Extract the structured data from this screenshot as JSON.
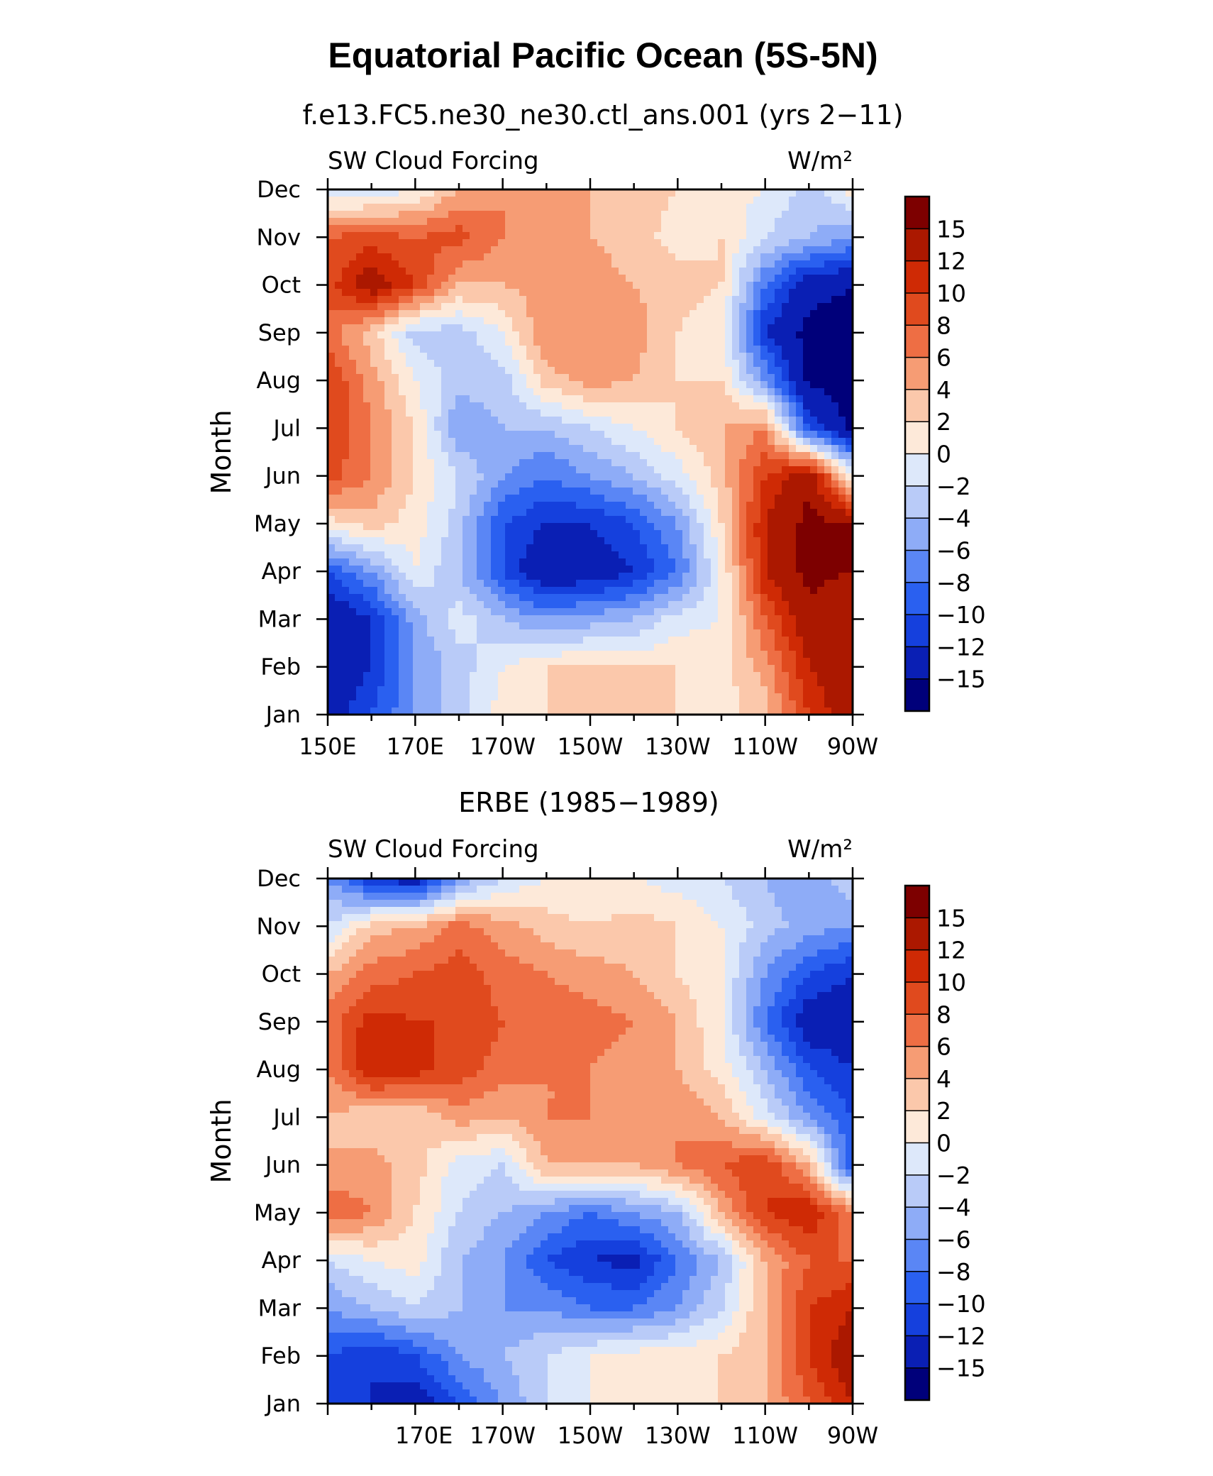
{
  "figure_title": "Equatorial Pacific Ocean (5S-5N)",
  "levels": [
    -15,
    -12,
    -10,
    -8,
    -6,
    -4,
    -2,
    0,
    2,
    4,
    6,
    8,
    10,
    12,
    15
  ],
  "palette": [
    "#00007a",
    "#0a1fb4",
    "#1540dd",
    "#2a60f0",
    "#5a86f5",
    "#8eacf7",
    "#b9cbf8",
    "#dde8fa",
    "#fde9d9",
    "#fbc8ab",
    "#f69c74",
    "#ee6e44",
    "#e04a1e",
    "#cf2a05",
    "#ab1800",
    "#7d0000"
  ],
  "chart_data": [
    {
      "type": "heatmap",
      "subtitle": "f.e13.FC5.ne30_ne30.ctl_ans.001 (yrs 2−11)",
      "corner_left": "SW Cloud Forcing",
      "corner_right": "W/m²",
      "ylabel": "Month",
      "x_tick_labels": [
        "150E",
        "170E",
        "170W",
        "150W",
        "130W",
        "110W",
        "90W"
      ],
      "y_tick_labels": [
        "Jan",
        "Feb",
        "Mar",
        "Apr",
        "May",
        "Jun",
        "Jul",
        "Aug",
        "Sep",
        "Oct",
        "Nov",
        "Dec"
      ],
      "colorbar_labels": [
        "−15",
        "−12",
        "−10",
        "−8",
        "−6",
        "−4",
        "−2",
        "0",
        "2",
        "4",
        "6",
        "8",
        "10",
        "12",
        "15"
      ],
      "xlim": [
        150,
        270
      ],
      "ylim": [
        "Jan",
        "Dec"
      ],
      "x": [
        150,
        160,
        170,
        180,
        190,
        200,
        210,
        220,
        230,
        240,
        250,
        260,
        270
      ],
      "y": [
        "Jan",
        "Feb",
        "Mar",
        "Apr",
        "May",
        "Jun",
        "Jul",
        "Aug",
        "Sep",
        "Oct",
        "Nov",
        "Dec"
      ],
      "z": [
        [
          -14,
          -10,
          -6,
          -3,
          1,
          2,
          3,
          3,
          2,
          1,
          3,
          10,
          14
        ],
        [
          -14,
          -12,
          -6,
          -3,
          0,
          2,
          2,
          2,
          2,
          1,
          5,
          12,
          15
        ],
        [
          -15,
          -12,
          -5,
          -1,
          -4,
          -6,
          -5,
          -4,
          -1,
          0,
          8,
          14,
          12
        ],
        [
          -10,
          -6,
          0,
          -4,
          -10,
          -15,
          -14,
          -12,
          -8,
          0,
          12,
          16,
          15
        ],
        [
          1,
          3,
          1,
          -3,
          -10,
          -12,
          -12,
          -10,
          -6,
          2,
          12,
          16,
          15
        ],
        [
          9,
          6,
          2,
          -2,
          -6,
          -8,
          -6,
          -4,
          -1,
          3,
          10,
          14,
          0
        ],
        [
          10,
          6,
          2,
          -6,
          -4,
          -4,
          -2,
          0,
          2,
          4,
          6,
          -10,
          -16
        ],
        [
          10,
          5,
          0,
          -3,
          -3,
          3,
          5,
          4,
          2,
          2,
          -6,
          -16,
          -16
        ],
        [
          7,
          3,
          -3,
          -3,
          0,
          6,
          6,
          5,
          2,
          0,
          -12,
          -16,
          -16
        ],
        [
          9,
          14,
          10,
          4,
          4,
          5,
          5,
          4,
          3,
          2,
          -8,
          -14,
          -15
        ],
        [
          8,
          9,
          8,
          9,
          6,
          4,
          4,
          3,
          1,
          2,
          -2,
          -4,
          -6
        ],
        [
          -2,
          -2,
          0,
          4,
          6,
          6,
          4,
          3,
          2,
          1,
          0,
          -3,
          1
        ]
      ]
    },
    {
      "type": "heatmap",
      "subtitle": "ERBE (1985−1989)",
      "corner_left": "SW Cloud Forcing",
      "corner_right": "W/m²",
      "ylabel": "Month",
      "x_tick_labels": [
        "170E",
        "170W",
        "150W",
        "130W",
        "110W",
        "90W"
      ],
      "y_tick_labels": [
        "Jan",
        "Feb",
        "Mar",
        "Apr",
        "May",
        "Jun",
        "Jul",
        "Aug",
        "Sep",
        "Oct",
        "Nov",
        "Dec"
      ],
      "colorbar_labels": [
        "−15",
        "−12",
        "−10",
        "−8",
        "−6",
        "−4",
        "−2",
        "0",
        "2",
        "4",
        "6",
        "8",
        "10",
        "12",
        "15"
      ],
      "xlim": [
        150,
        270
      ],
      "ylim": [
        "Jan",
        "Dec"
      ],
      "x": [
        150,
        160,
        170,
        180,
        190,
        200,
        210,
        220,
        230,
        240,
        250,
        260,
        270
      ],
      "y": [
        "Jan",
        "Feb",
        "Mar",
        "Apr",
        "May",
        "Jun",
        "Jul",
        "Aug",
        "Sep",
        "Oct",
        "Nov",
        "Dec"
      ],
      "z": [
        [
          -10,
          -12,
          -14,
          -10,
          -6,
          -2,
          0,
          1,
          1,
          2,
          4,
          8,
          12
        ],
        [
          -10,
          -12,
          -10,
          -6,
          -4,
          -2,
          0,
          1,
          1,
          2,
          4,
          10,
          14
        ],
        [
          -6,
          -4,
          -2,
          -4,
          -6,
          -6,
          -8,
          -8,
          -6,
          -2,
          4,
          10,
          12
        ],
        [
          -2,
          0,
          1,
          -4,
          -6,
          -10,
          -12,
          -13,
          -8,
          -4,
          4,
          8,
          8
        ],
        [
          8,
          6,
          2,
          -2,
          -4,
          -6,
          -8,
          -6,
          -4,
          4,
          10,
          12,
          6
        ],
        [
          4,
          5,
          3,
          -1,
          -2,
          4,
          4,
          4,
          6,
          8,
          10,
          4,
          -10
        ],
        [
          4,
          2,
          2,
          5,
          4,
          6,
          6,
          5,
          6,
          4,
          -1,
          -6,
          -10
        ],
        [
          6,
          12,
          11,
          9,
          7,
          6,
          6,
          5,
          4,
          1,
          -4,
          -10,
          -12
        ],
        [
          7,
          11,
          10,
          10,
          8,
          7,
          7,
          6,
          4,
          0,
          -8,
          -14,
          -14
        ],
        [
          4,
          7,
          8,
          9,
          7,
          6,
          5,
          4,
          2,
          0,
          -6,
          -10,
          -12
        ],
        [
          -2,
          3,
          4,
          7,
          5,
          3,
          2,
          3,
          2,
          0,
          -3,
          -5,
          -6
        ],
        [
          -6,
          -12,
          -14,
          -6,
          -2,
          0,
          0,
          0,
          -1,
          -2,
          -4,
          -6,
          -2
        ]
      ]
    }
  ]
}
